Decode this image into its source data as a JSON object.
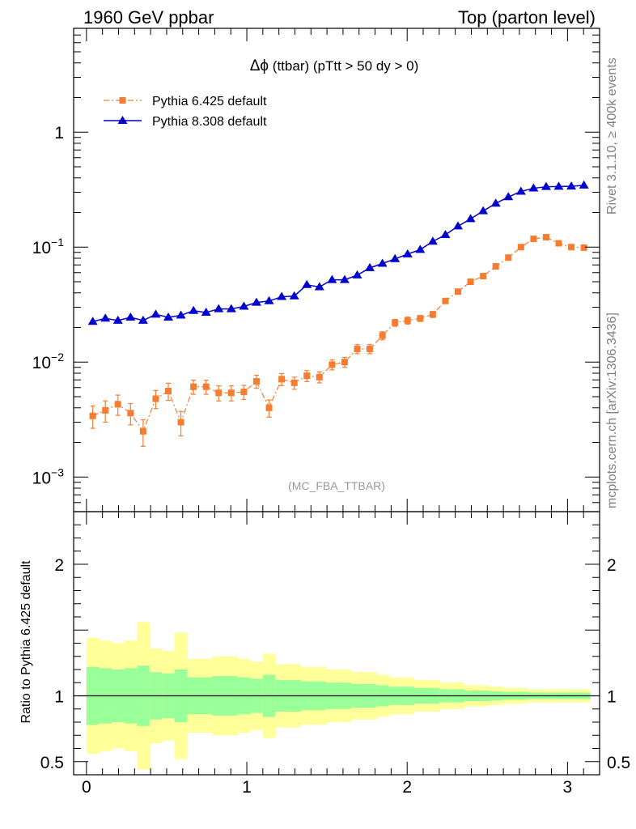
{
  "header": {
    "left": "1960 GeV ppbar",
    "right": "Top (parton level)"
  },
  "side_text": {
    "version": "Rivet 3.1.10, ≥ 400k events",
    "source": "mcplots.cern.ch [arXiv:1306.3436]"
  },
  "chart_data": [
    {
      "type": "line",
      "title": "Δϕ (ttbar) (pTtt > 50 dy > 0)",
      "title_symbol": "Δϕ",
      "title_rest": " (ttbar) (pTtt > 50 dy > 0)",
      "watermark": "(MC_FBA_TTBAR)",
      "yscale": "log",
      "xlim": [
        -0.08,
        3.2
      ],
      "ylim": [
        0.0005,
        8
      ],
      "ytick_labels": [
        {
          "value": 1,
          "base": "1",
          "exp": ""
        },
        {
          "value": 0.1,
          "base": "10",
          "exp": "−1"
        },
        {
          "value": 0.01,
          "base": "10",
          "exp": "−2"
        },
        {
          "value": 0.001,
          "base": "10",
          "exp": "−3"
        }
      ],
      "legend_position": "top-left",
      "x": [
        0.0393,
        0.1178,
        0.1963,
        0.2749,
        0.3534,
        0.432,
        0.5105,
        0.589,
        0.6676,
        0.7461,
        0.8247,
        0.9032,
        0.9817,
        1.0603,
        1.1388,
        1.2174,
        1.2959,
        1.3744,
        1.453,
        1.5315,
        1.6101,
        1.6886,
        1.7671,
        1.8457,
        1.9242,
        2.0028,
        2.0813,
        2.1598,
        2.2384,
        2.3169,
        2.3955,
        2.474,
        2.5525,
        2.6311,
        2.7096,
        2.7882,
        2.8667,
        2.9452,
        3.0238,
        3.1023
      ],
      "series": [
        {
          "name": "Pythia 6.425 default",
          "color": "#f57c30",
          "marker": "square",
          "linestyle": "dash-dot",
          "values": [
            0.0034,
            0.0038,
            0.0043,
            0.0036,
            0.0025,
            0.0048,
            0.0056,
            0.003,
            0.0061,
            0.0061,
            0.0054,
            0.0054,
            0.0055,
            0.0068,
            0.004,
            0.0071,
            0.0066,
            0.0076,
            0.0074,
            0.0095,
            0.01,
            0.013,
            0.013,
            0.017,
            0.022,
            0.023,
            0.024,
            0.026,
            0.034,
            0.041,
            0.05,
            0.056,
            0.068,
            0.081,
            0.1,
            0.118,
            0.122,
            0.108,
            0.1,
            0.099
          ],
          "rel_errors": [
            0.22,
            0.21,
            0.2,
            0.21,
            0.26,
            0.18,
            0.17,
            0.24,
            0.14,
            0.14,
            0.15,
            0.15,
            0.14,
            0.13,
            0.17,
            0.12,
            0.12,
            0.11,
            0.11,
            0.1,
            0.1,
            0.09,
            0.09,
            0.08,
            0.07,
            0.07,
            0.06,
            0.06,
            0.05,
            0.05,
            0.04,
            0.04,
            0.035,
            0.03,
            0.03,
            0.025,
            0.025,
            0.025,
            0.025,
            0.025
          ]
        },
        {
          "name": "Pythia 8.308 default",
          "color": "#0000cc",
          "marker": "triangle",
          "linestyle": "solid",
          "values": [
            0.0225,
            0.024,
            0.023,
            0.0245,
            0.023,
            0.026,
            0.0245,
            0.0255,
            0.028,
            0.027,
            0.029,
            0.029,
            0.0305,
            0.033,
            0.034,
            0.037,
            0.0375,
            0.047,
            0.045,
            0.052,
            0.052,
            0.057,
            0.066,
            0.072,
            0.079,
            0.087,
            0.095,
            0.112,
            0.128,
            0.152,
            0.176,
            0.206,
            0.24,
            0.273,
            0.305,
            0.325,
            0.335,
            0.337,
            0.338,
            0.345
          ]
        }
      ]
    },
    {
      "type": "area",
      "ylabel": "Ratio to Pythia 6.425 default",
      "ylim": [
        0.4,
        2.4
      ],
      "ytick_labels": [
        {
          "value": 0.5,
          "label": "0.5"
        },
        {
          "value": 1,
          "label": "1"
        },
        {
          "value": 2,
          "label": "2"
        }
      ],
      "xlim": [
        -0.08,
        3.2
      ],
      "xtick_labels": [
        {
          "value": 0,
          "label": "0"
        },
        {
          "value": 1,
          "label": "1"
        },
        {
          "value": 2,
          "label": "2"
        },
        {
          "value": 3,
          "label": "3"
        }
      ],
      "band_colors": {
        "inner": "#99ff99",
        "outer": "#ffff99"
      },
      "reference_line": 1,
      "inner_band": [
        0.22,
        0.21,
        0.2,
        0.21,
        0.23,
        0.18,
        0.17,
        0.2,
        0.14,
        0.14,
        0.15,
        0.15,
        0.14,
        0.13,
        0.16,
        0.12,
        0.12,
        0.11,
        0.11,
        0.1,
        0.1,
        0.09,
        0.09,
        0.08,
        0.07,
        0.07,
        0.06,
        0.06,
        0.05,
        0.05,
        0.04,
        0.04,
        0.035,
        0.03,
        0.03,
        0.025,
        0.025,
        0.025,
        0.025,
        0.025
      ],
      "outer_band": [
        0.44,
        0.42,
        0.4,
        0.42,
        0.56,
        0.36,
        0.34,
        0.48,
        0.28,
        0.28,
        0.3,
        0.3,
        0.28,
        0.26,
        0.32,
        0.24,
        0.24,
        0.22,
        0.22,
        0.2,
        0.2,
        0.18,
        0.18,
        0.16,
        0.14,
        0.14,
        0.12,
        0.12,
        0.1,
        0.1,
        0.08,
        0.08,
        0.07,
        0.06,
        0.06,
        0.05,
        0.05,
        0.05,
        0.05,
        0.05
      ]
    }
  ]
}
